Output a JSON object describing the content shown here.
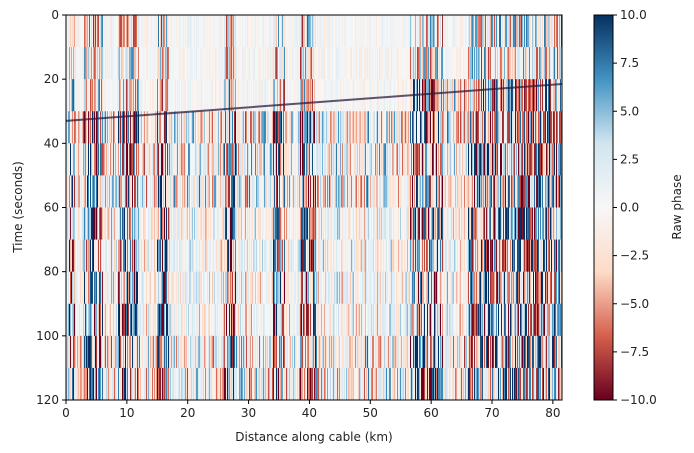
{
  "chart_data": {
    "type": "heatmap",
    "title": "",
    "xlabel": "Distance along cable (km)",
    "ylabel": "Time (seconds)",
    "xlim": [
      0,
      81.5
    ],
    "ylim": [
      120,
      0
    ],
    "y_axis_inverted": true,
    "x_ticks": [
      0,
      10,
      20,
      30,
      40,
      50,
      60,
      70,
      80
    ],
    "x_tick_labels": [
      "0",
      "10",
      "20",
      "30",
      "40",
      "50",
      "60",
      "70",
      "80"
    ],
    "y_ticks": [
      0,
      20,
      40,
      60,
      80,
      100,
      120
    ],
    "y_tick_labels": [
      "0",
      "20",
      "40",
      "60",
      "80",
      "100",
      "120"
    ],
    "grid": false,
    "colormap": "RdBu",
    "colormap_colors": [
      "#67001f",
      "#d6604d",
      "#fddbc7",
      "#f7f7f7",
      "#d1e5f0",
      "#4393c3",
      "#053061"
    ],
    "colorbar": {
      "label": "Raw phase",
      "vmin": -10,
      "vmax": 10,
      "ticks": [
        10,
        7.5,
        5,
        2.5,
        0,
        -2.5,
        -5,
        -7.5,
        -10
      ],
      "tick_labels": [
        "10.0",
        "7.5",
        "5.0",
        "2.5",
        "0.0",
        "−2.5",
        "−5.0",
        "−7.5",
        "−10.0"
      ],
      "placement": "right"
    },
    "features": {
      "arrival_front": {
        "description": "sloped arrival front",
        "points": [
          [
            0,
            33
          ],
          [
            81.5,
            21.5
          ]
        ]
      },
      "noisy_distance_bands_km": [
        [
          0.5,
          1.5
        ],
        [
          3,
          6
        ],
        [
          8.5,
          12
        ],
        [
          15,
          17
        ],
        [
          26,
          28
        ],
        [
          34,
          36
        ],
        [
          38.5,
          41
        ],
        [
          56.5,
          60
        ],
        [
          60,
          62
        ],
        [
          66,
          81.5
        ]
      ],
      "quieter_time_window_s": [
        60,
        95
      ]
    }
  }
}
